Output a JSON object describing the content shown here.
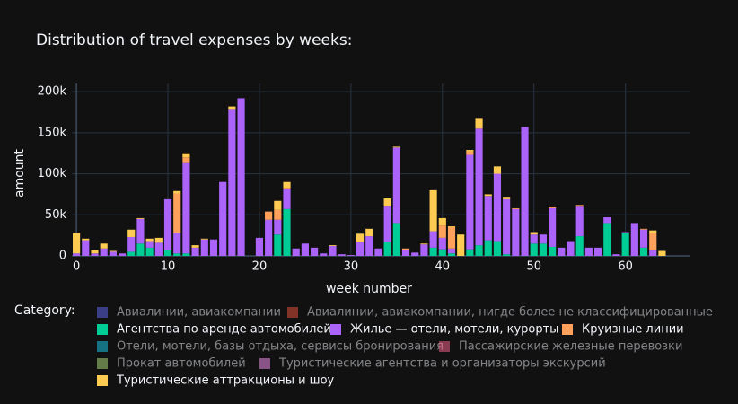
{
  "chart_data": {
    "type": "bar",
    "barmode": "stack",
    "title": "Distribution of travel expenses by weeks:",
    "x_label": "week number",
    "y_label": "amount",
    "legend_title": "Category:",
    "x": [
      0,
      1,
      2,
      3,
      4,
      5,
      6,
      7,
      8,
      9,
      10,
      11,
      12,
      13,
      14,
      15,
      16,
      17,
      18,
      19,
      20,
      21,
      22,
      23,
      24,
      25,
      26,
      27,
      28,
      29,
      30,
      31,
      32,
      33,
      34,
      35,
      36,
      37,
      38,
      39,
      40,
      41,
      42,
      43,
      44,
      45,
      46,
      47,
      48,
      49,
      50,
      51,
      52,
      53,
      54,
      55,
      56,
      57,
      58,
      59,
      60,
      61,
      62,
      63,
      64
    ],
    "xlim": [
      -0.5,
      67
    ],
    "xticks": [
      0,
      10,
      20,
      30,
      40,
      50,
      60
    ],
    "ylim": [
      0,
      210000
    ],
    "yticks": [
      0,
      {
        "value": 50000,
        "label": "50k"
      },
      {
        "value": 100000,
        "label": "100k"
      },
      {
        "value": 150000,
        "label": "150k"
      },
      {
        "value": 200000,
        "label": "200k"
      }
    ],
    "grid": true,
    "series": [
      {
        "name": "Авиалинии, авиакомпании",
        "color": "#636efa",
        "visible": false
      },
      {
        "name": "Авиалинии, авиакомпании, нигде более не классифицированные",
        "color": "#EF553B",
        "visible": false
      },
      {
        "name": "Агентства по аренде автомобилей",
        "color": "#00cc96",
        "visible": true,
        "values": [
          0,
          0,
          0,
          0,
          0,
          0,
          5000,
          15000,
          10000,
          0,
          7000,
          3000,
          3000,
          0,
          0,
          0,
          0,
          0,
          0,
          0,
          0,
          0,
          26000,
          57000,
          0,
          0,
          0,
          0,
          0,
          0,
          0,
          0,
          0,
          0,
          17000,
          40000,
          0,
          0,
          0,
          10000,
          8000,
          3000,
          0,
          8000,
          13000,
          19000,
          18000,
          2000,
          0,
          0,
          15000,
          15000,
          11000,
          0,
          0,
          24000,
          0,
          0,
          40000,
          0,
          28000,
          0,
          10000,
          0,
          0
        ]
      },
      {
        "name": "Жилье — отели, мотели, курорты",
        "color": "#ab63fa",
        "visible": true,
        "values": [
          3000,
          19000,
          3000,
          9000,
          5000,
          3000,
          18000,
          30000,
          8000,
          16000,
          62000,
          25000,
          110000,
          10000,
          20000,
          20000,
          90000,
          179000,
          192000,
          0,
          22000,
          44000,
          18000,
          24000,
          9000,
          15000,
          10000,
          3000,
          12000,
          2000,
          1000,
          17000,
          24000,
          9000,
          43000,
          92000,
          7000,
          4000,
          14000,
          20000,
          14000,
          6000,
          0,
          115000,
          142000,
          54000,
          82000,
          67000,
          57000,
          157000,
          11000,
          11000,
          47000,
          10000,
          18000,
          36000,
          10000,
          10000,
          7000,
          2000,
          1000,
          40000,
          22000,
          7000,
          0
        ]
      },
      {
        "name": "Круизные линии",
        "color": "#FFA15A",
        "visible": true,
        "values": [
          0,
          0,
          0,
          0,
          0,
          0,
          0,
          0,
          0,
          0,
          0,
          48000,
          7000,
          0,
          0,
          0,
          0,
          0,
          0,
          0,
          0,
          10000,
          12000,
          2000,
          0,
          0,
          0,
          0,
          0,
          0,
          0,
          0,
          0,
          0,
          0,
          0,
          2000,
          0,
          0,
          0,
          15000,
          26000,
          0,
          4000,
          0,
          0,
          0,
          0,
          1000,
          0,
          0,
          0,
          1000,
          0,
          0,
          2000,
          0,
          0,
          0,
          0,
          0,
          0,
          1000,
          21000,
          0
        ]
      },
      {
        "name": "Отели, мотели, базы отдыха, сервисы бронирования",
        "color": "#19d3f3",
        "visible": false
      },
      {
        "name": "Пассажирские железные перевозки",
        "color": "#FF6692",
        "visible": false
      },
      {
        "name": "Прокат автомобилей",
        "color": "#B6E880",
        "visible": false
      },
      {
        "name": "Туристические агентства и организаторы экскурсий",
        "color": "#FF97FF",
        "visible": false
      },
      {
        "name": "Туристические аттракционы и шоу",
        "color": "#FECB52",
        "visible": true,
        "values": [
          25000,
          2000,
          4000,
          6000,
          1000,
          0,
          9000,
          1000,
          3000,
          6000,
          0,
          3000,
          5000,
          3000,
          1000,
          0,
          0,
          3000,
          0,
          0,
          0,
          0,
          11000,
          7000,
          0,
          0,
          0,
          0,
          1000,
          0,
          0,
          10000,
          9000,
          0,
          10000,
          1000,
          0,
          0,
          1000,
          50000,
          9000,
          1000,
          26000,
          2000,
          13000,
          2000,
          9000,
          3000,
          0,
          0,
          3000,
          0,
          0,
          0,
          0,
          0,
          0,
          0,
          0,
          0,
          0,
          0,
          0,
          3000,
          6000
        ]
      }
    ]
  }
}
